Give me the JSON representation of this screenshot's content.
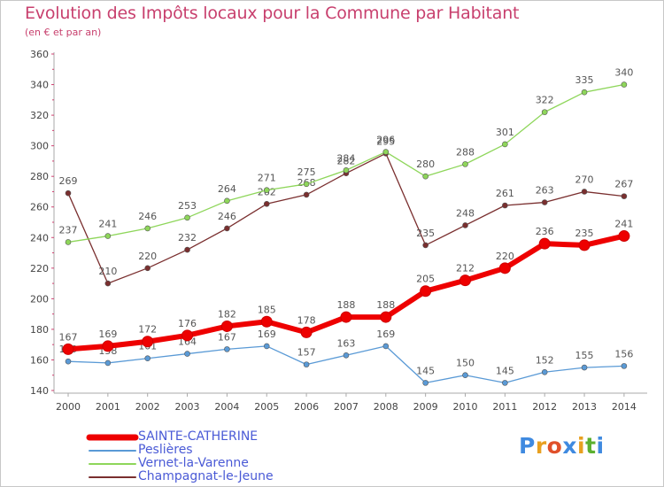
{
  "header": {
    "title": "Evolution des Impôts locaux pour la Commune par Habitant",
    "subtitle": "(en € et par an)"
  },
  "logo": {
    "letters": [
      "P",
      "r",
      "o",
      "x",
      "i",
      "t",
      "i"
    ],
    "colors": [
      "#3f8ae0",
      "#e8a020",
      "#e0502a",
      "#3f8ae0",
      "#e8a020",
      "#5cb030",
      "#3f8ae0"
    ]
  },
  "chart_data": {
    "type": "line",
    "title": "Evolution des Impôts locaux pour la Commune par Habitant",
    "subtitle": "(en € et par an)",
    "x": [
      "2000",
      "2001",
      "2002",
      "2003",
      "2004",
      "2005",
      "2006",
      "2007",
      "2008",
      "2009",
      "2010",
      "2011",
      "2012",
      "2013",
      "2014"
    ],
    "ylim": [
      140,
      360
    ],
    "yticks": [
      140,
      160,
      180,
      200,
      220,
      240,
      260,
      280,
      300,
      320,
      340,
      360
    ],
    "grid": false,
    "legend_position": "bottom-left",
    "series": [
      {
        "name": "Champagnat-le-Jeune",
        "color": "#7a2f2f",
        "values": [
          269,
          210,
          220,
          232,
          246,
          262,
          268,
          282,
          295,
          235,
          248,
          261,
          263,
          270,
          267
        ]
      },
      {
        "name": "Vernet-la-Varenne",
        "color": "#8ed65a",
        "values": [
          237,
          241,
          246,
          253,
          264,
          271,
          275,
          284,
          296,
          280,
          288,
          301,
          322,
          335,
          340
        ]
      },
      {
        "name": "Peslières",
        "color": "#5a9ad6",
        "values": [
          159,
          158,
          161,
          164,
          167,
          169,
          157,
          163,
          169,
          145,
          150,
          145,
          152,
          155,
          156
        ]
      },
      {
        "name": "SAINTE-CATHERINE",
        "color": "#ee0000",
        "values": [
          167,
          169,
          172,
          176,
          182,
          185,
          178,
          188,
          188,
          205,
          212,
          220,
          236,
          235,
          241
        ]
      }
    ],
    "legend": [
      "SAINTE-CATHERINE",
      "Peslières",
      "Vernet-la-Varenne",
      "Champagnat-le-Jeune"
    ]
  }
}
